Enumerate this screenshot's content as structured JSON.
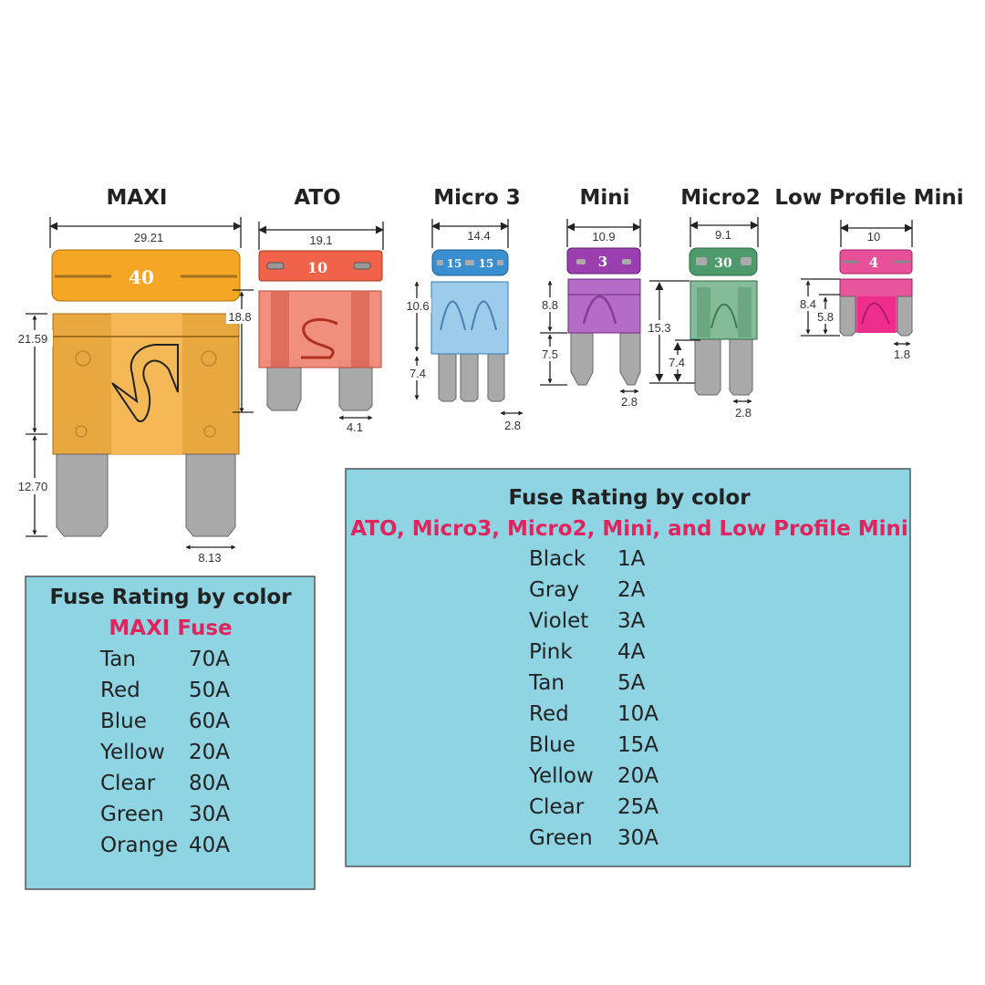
{
  "fuses": {
    "maxi": {
      "title": "MAXI",
      "width": "29.21",
      "body_height": "21.59",
      "prong_height": "12.70",
      "prong_width": "8.13",
      "side": "18.8",
      "rating": "40",
      "color": "#f5a623"
    },
    "ato": {
      "title": "ATO",
      "width": "19.1",
      "prong_width": "4.1",
      "rating": "10",
      "color": "#f0624a"
    },
    "micro3": {
      "title": "Micro 3",
      "width": "14.4",
      "body_height": "10.6",
      "prong_height": "7.4",
      "prong_width": "2.8",
      "rating_a": "15",
      "rating_b": "15",
      "color": "#3a8fd0"
    },
    "mini": {
      "title": "Mini",
      "width": "10.9",
      "body_height": "8.8",
      "prong_height": "7.5",
      "prong_width": "2.8",
      "rating": "3",
      "color": "#9b3fb0"
    },
    "micro2": {
      "title": "Micro2",
      "width": "9.1",
      "total_height": "15.3",
      "prong_height": "7.4",
      "prong_width": "2.8",
      "rating": "30",
      "color": "#4f9a6c"
    },
    "lpm": {
      "title": "Low Profile Mini",
      "width": "10",
      "total_height": "8.4",
      "inner_height": "5.8",
      "prong_width": "1.8",
      "rating": "4",
      "color": "#e8509a"
    }
  },
  "maxi_table": {
    "heading": "Fuse Rating by color",
    "subtitle": "MAXI Fuse",
    "rows": [
      {
        "color": "Tan",
        "rating": "70A"
      },
      {
        "color": "Red",
        "rating": "50A"
      },
      {
        "color": "Blue",
        "rating": "60A"
      },
      {
        "color": "Yellow",
        "rating": "20A"
      },
      {
        "color": "Clear",
        "rating": "80A"
      },
      {
        "color": "Green",
        "rating": "30A"
      },
      {
        "color": "Orange",
        "rating": "40A"
      }
    ]
  },
  "other_table": {
    "heading": "Fuse Rating by color",
    "subtitle": "ATO, Micro3, Micro2, Mini, and Low Profile Mini",
    "rows": [
      {
        "color": "Black",
        "rating": "1A"
      },
      {
        "color": "Gray",
        "rating": "2A"
      },
      {
        "color": "Violet",
        "rating": "3A"
      },
      {
        "color": "Pink",
        "rating": "4A"
      },
      {
        "color": "Tan",
        "rating": "5A"
      },
      {
        "color": "Red",
        "rating": "10A"
      },
      {
        "color": "Blue",
        "rating": "15A"
      },
      {
        "color": "Yellow",
        "rating": "20A"
      },
      {
        "color": "Clear",
        "rating": "25A"
      },
      {
        "color": "Green",
        "rating": "30A"
      }
    ]
  },
  "accent_color": "#e0245e",
  "table_background": "#8fd4e3"
}
